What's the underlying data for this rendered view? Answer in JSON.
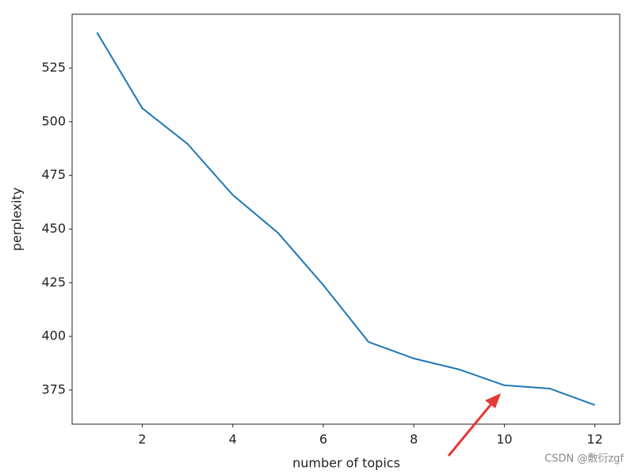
{
  "chart_data": {
    "type": "line",
    "xlabel": "number of topics",
    "ylabel": "perplexity",
    "x": [
      1,
      2,
      3,
      4,
      5,
      6,
      7,
      8,
      9,
      10,
      11,
      12
    ],
    "series": [
      {
        "name": "perplexity",
        "color": "#1f77b4",
        "values": [
          541.6,
          506.3,
          489.7,
          465.9,
          448.2,
          423.9,
          397.4,
          389.7,
          384.6,
          377.2,
          375.7,
          368.0
        ]
      }
    ],
    "xlim": [
      0.45,
      12.55
    ],
    "xticks": [
      2,
      4,
      6,
      8,
      10,
      12
    ],
    "ylim": [
      359.1,
      550.1
    ],
    "yticks": [
      375,
      400,
      425,
      450,
      475,
      500,
      525
    ],
    "grid": false,
    "watermark": "CSDN @敷衍zgf"
  }
}
